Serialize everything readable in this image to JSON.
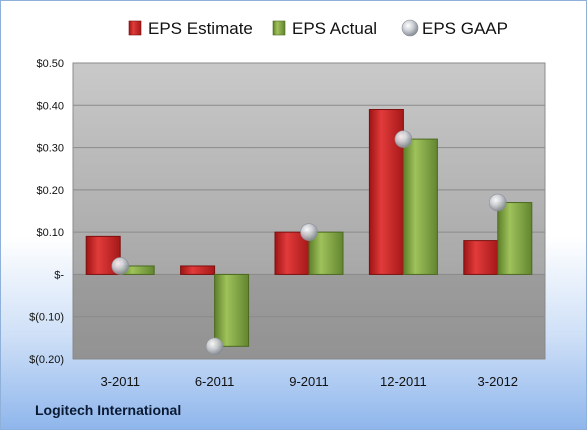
{
  "footer": {
    "company": "Logitech International"
  },
  "chart_data": {
    "type": "bar",
    "categories": [
      "3-2011",
      "6-2011",
      "9-2011",
      "12-2011",
      "3-2012"
    ],
    "series": [
      {
        "name": "EPS Estimate",
        "kind": "bar",
        "color": "#cc2222",
        "values": [
          0.09,
          0.02,
          0.1,
          0.39,
          0.08
        ]
      },
      {
        "name": "EPS Actual",
        "kind": "bar",
        "color": "#86ad45",
        "values": [
          0.02,
          -0.17,
          0.1,
          0.32,
          0.17
        ]
      },
      {
        "name": "EPS GAAP",
        "kind": "marker",
        "color": "#b8bcc4",
        "values": [
          0.02,
          -0.17,
          0.1,
          0.32,
          0.17
        ]
      }
    ],
    "ylim": [
      -0.2,
      0.5
    ],
    "yticks": [
      0.5,
      0.4,
      0.3,
      0.2,
      0.1,
      0.0,
      -0.1,
      -0.2
    ],
    "ytick_labels": [
      "$0.50",
      "$0.40",
      "$0.30",
      "$0.20",
      "$0.10",
      "$-",
      "$(0.10)",
      "$(0.20)"
    ],
    "grid": true,
    "legend_position": "top"
  }
}
